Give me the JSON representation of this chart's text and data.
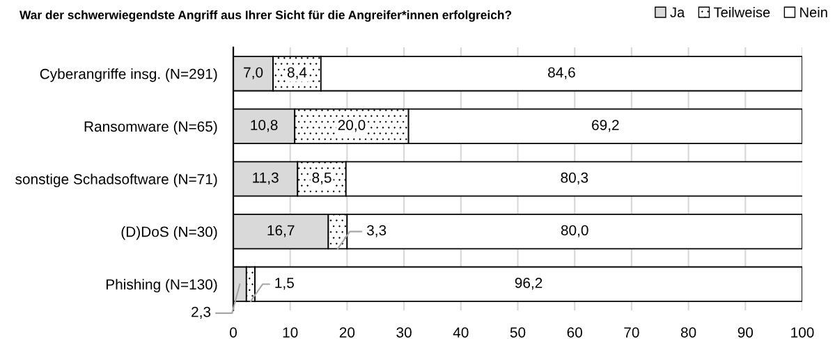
{
  "chart_data": {
    "type": "bar",
    "orientation": "horizontal",
    "stacked": true,
    "title": "War der schwerwiegendste Angriff aus Ihrer Sicht für die Angreifer*innen erfolgreich?",
    "categories": [
      "Cyberangriffe insg. (N=291)",
      "Ransomware (N=65)",
      "sonstige Schadsoftware (N=71)",
      "(D)DoS (N=30)",
      "Phishing (N=130)"
    ],
    "series": [
      {
        "name": "Ja",
        "color": "#d9d9d9",
        "values": [
          7.0,
          10.8,
          11.3,
          16.7,
          2.3
        ],
        "value_labels": [
          "7,0",
          "10,8",
          "11,3",
          "16,7",
          "2,3"
        ]
      },
      {
        "name": "Teilweise",
        "color": "#000000",
        "values": [
          8.4,
          20.0,
          8.5,
          3.3,
          1.5
        ],
        "value_labels": [
          "8,4",
          "20,0",
          "8,5",
          "3,3",
          "1,5"
        ]
      },
      {
        "name": "Nein",
        "color": "#ffffff",
        "values": [
          84.6,
          69.2,
          80.3,
          80.0,
          96.2
        ],
        "value_labels": [
          "84,6",
          "69,2",
          "80,3",
          "80,0",
          "96,2"
        ]
      }
    ],
    "xlim": [
      0,
      100
    ],
    "xticks": [
      0,
      10,
      20,
      30,
      40,
      50,
      60,
      70,
      80,
      90,
      100
    ],
    "grid": "x",
    "legend": "top right"
  }
}
